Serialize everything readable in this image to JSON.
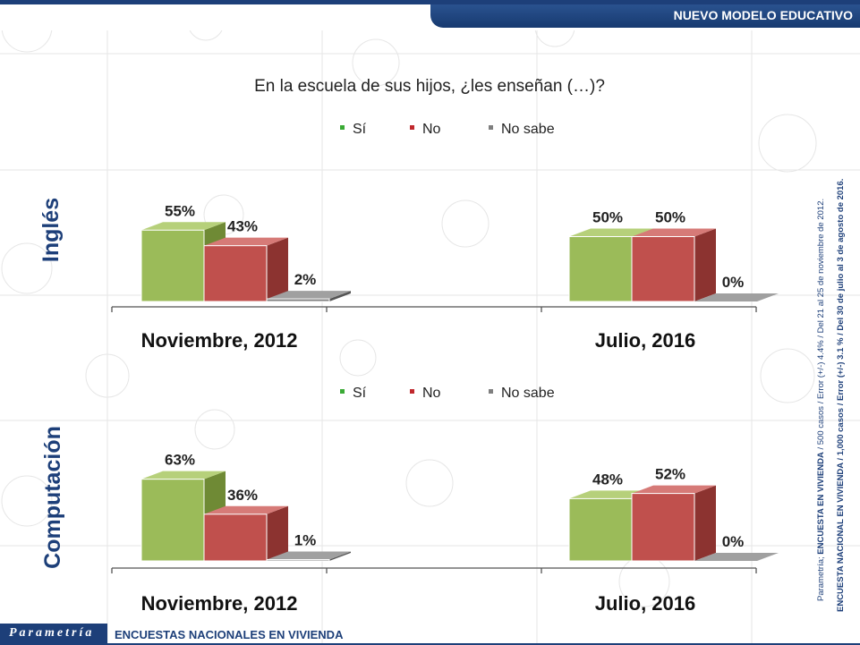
{
  "header": {
    "badge": "NUEVO MODELO EDUCATIVO"
  },
  "watermark": {
    "brand": "Parametría"
  },
  "question": "En la escuela de sus hijos, ¿les enseñan (…)?",
  "legend": [
    {
      "label": "Sí",
      "color": "#8db24a"
    },
    {
      "label": "No",
      "color": "#c0504d"
    },
    {
      "label": "No sabe",
      "color": "#7f7f7f"
    }
  ],
  "chart_data": [
    {
      "type": "bar",
      "title": "Inglés",
      "categories": [
        "Noviembre, 2012",
        "Julio, 2016"
      ],
      "series": [
        {
          "name": "Sí",
          "values": [
            55,
            50
          ]
        },
        {
          "name": "No",
          "values": [
            43,
            50
          ]
        },
        {
          "name": "No sabe",
          "values": [
            2,
            0
          ]
        }
      ],
      "data_labels": [
        [
          "55%",
          "43%",
          "2%"
        ],
        [
          "50%",
          "50%",
          "0%"
        ]
      ],
      "ylim": [
        0,
        100
      ],
      "legend_position": "top",
      "grid": false
    },
    {
      "type": "bar",
      "title": "Computación",
      "categories": [
        "Noviembre, 2012",
        "Julio, 2016"
      ],
      "series": [
        {
          "name": "Sí",
          "values": [
            63,
            48
          ]
        },
        {
          "name": "No",
          "values": [
            36,
            52
          ]
        },
        {
          "name": "No sabe",
          "values": [
            1,
            0
          ]
        }
      ],
      "data_labels": [
        [
          "63%",
          "36%",
          "1%"
        ],
        [
          "48%",
          "52%",
          "0%"
        ]
      ],
      "ylim": [
        0,
        100
      ],
      "legend_position": "top",
      "grid": false
    }
  ],
  "footer": {
    "logo": "Parametría",
    "title": "ENCUESTAS NACIONALES EN VIVIENDA"
  },
  "side_notes": {
    "line1_bold": "ENCUESTA EN VIVIENDA",
    "line1_prefix": "Parametría; ",
    "line1_rest": " / 500 casos / Error (+/-) 4.4% / Del 21 al 25 de noviembre de 2012.",
    "line2": "ENCUESTA NACIONAL EN VIVIENDA / 1,000 casos / Error (+/-) 3.1 % / Del 30 de julio al 3 de agosto de 2016."
  }
}
